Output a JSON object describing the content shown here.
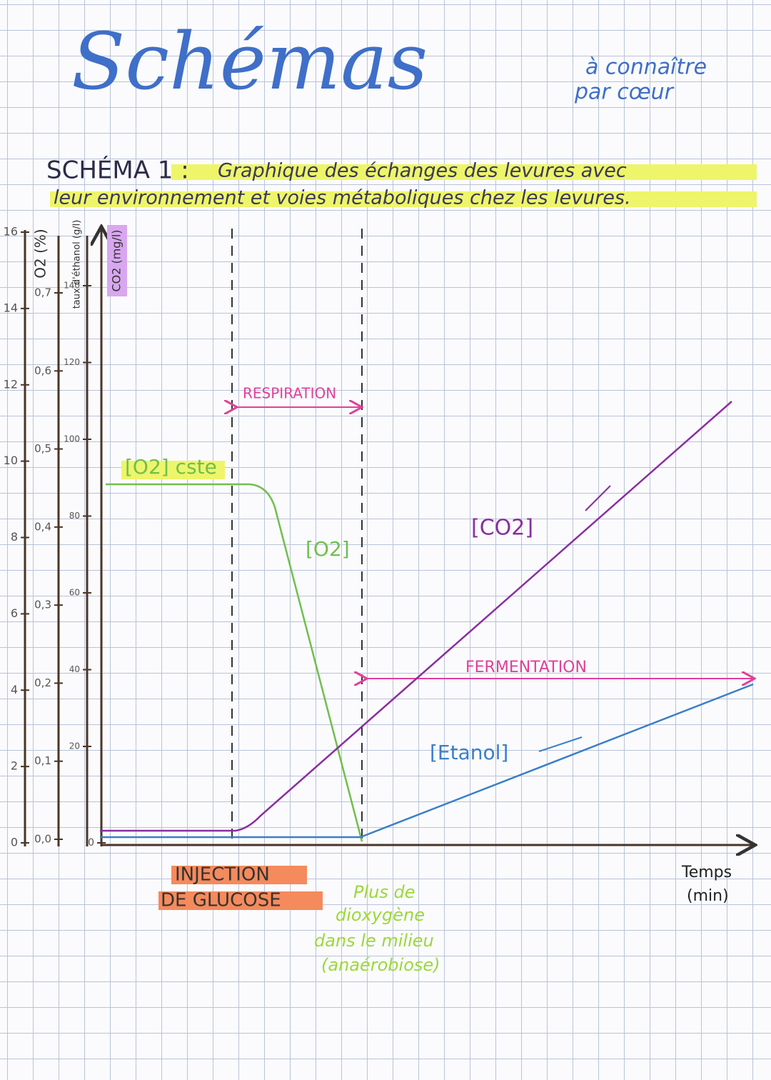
{
  "title": "Schémas",
  "subtitle": [
    "à connaître",
    "par cœur"
  ],
  "heading": {
    "label": "SCHÉMA 1 :",
    "text_line1": "Graphique des échanges des levures avec",
    "text_line2": "leur environnement et voies métaboliques chez les levures."
  },
  "axes": {
    "scale": {
      "ticks": [
        "16",
        "14",
        "12",
        "10",
        "8",
        "6",
        "4",
        "2",
        "0"
      ]
    },
    "o2": {
      "label": "O2 (%)",
      "ticks": [
        "0,7",
        "0,6",
        "0,5",
        "0,4",
        "0,3",
        "0,2",
        "0,1",
        "0,0"
      ]
    },
    "ethanol": {
      "label": "taux d'éthanol (g/l)",
      "ticks": [
        "140",
        "120",
        "100",
        "80",
        "60",
        "40",
        "20"
      ]
    },
    "co2": {
      "label": "CO2 (mg/l)",
      "ticks": [
        "0"
      ]
    },
    "x": {
      "label_line1": "Temps",
      "label_line2": "(min)"
    }
  },
  "annotations": {
    "respiration": "RESPIRATION",
    "fermentation": "FERMENTATION",
    "o2_constant": "[O2] cste",
    "o2": "[O2]",
    "co2": "[CO2]",
    "ethanol": "[Etanol]",
    "injection": [
      "INJECTION",
      "DE GLUCOSE"
    ],
    "anaerobiosis": [
      "Plus de",
      "dioxygène",
      "dans le milieu",
      "(anaérobiose)"
    ]
  }
}
